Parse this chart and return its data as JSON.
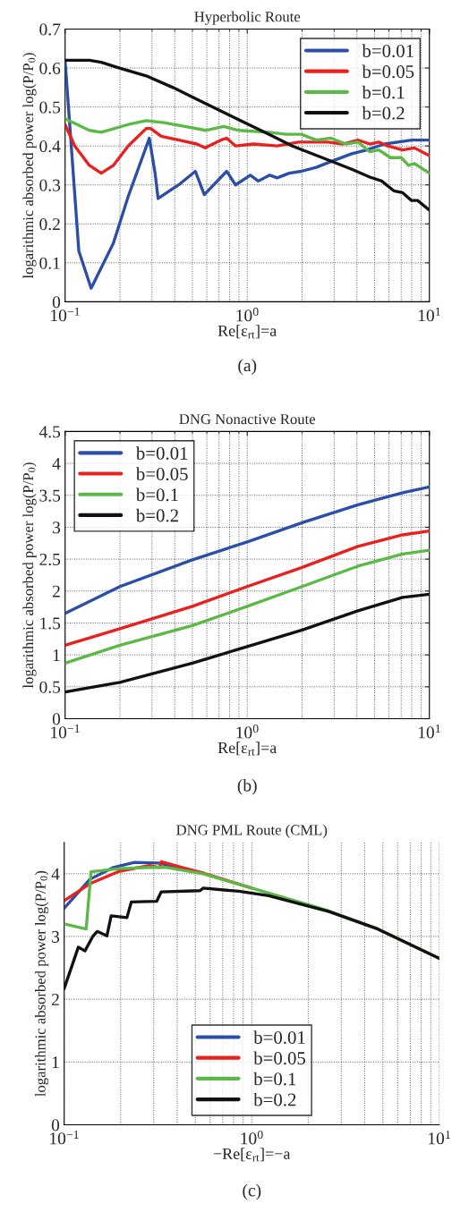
{
  "chart_data": [
    {
      "type": "line",
      "title": "Hyperbolic Route",
      "xlabel": "Re[ε$_{rt}$]=a",
      "ylabel": "logarithmic absorbed power log(P/P$_{0}$)",
      "annotations": [
        "(a)"
      ],
      "log": "x",
      "xlim": [
        0.1,
        10
      ],
      "xticks": [
        {
          "value": 0.1,
          "label": "10$^{−1}$"
        },
        {
          "value": 1,
          "label": "10$^{0}$"
        },
        {
          "value": 10,
          "label": "10$^{1}$"
        }
      ],
      "ylim": [
        0,
        0.7
      ],
      "yticks": [
        0,
        0.1,
        0.2,
        0.3,
        0.4,
        0.5,
        0.6,
        0.7
      ],
      "grid": true,
      "legend": "top right",
      "line_style": "solid",
      "marker": "none",
      "series": [
        {
          "name": "b=0.01",
          "color": "#2b4ea6",
          "x": [
            0.1,
            0.119,
            0.139,
            0.184,
            0.222,
            0.29,
            0.312,
            0.324,
            0.42,
            0.519,
            0.581,
            0.771,
            0.863,
            1.04,
            1.15,
            1.33,
            1.46,
            1.7,
            1.98,
            2.39,
            2.88,
            3.75,
            4.53,
            5.69,
            7.98,
            10
          ],
          "values": [
            0.62,
            0.13,
            0.035,
            0.15,
            0.27,
            0.42,
            0.33,
            0.265,
            0.3,
            0.335,
            0.275,
            0.335,
            0.3,
            0.325,
            0.31,
            0.325,
            0.318,
            0.33,
            0.335,
            0.345,
            0.36,
            0.38,
            0.39,
            0.405,
            0.415,
            0.415
          ]
        },
        {
          "name": "b=0.05",
          "color": "#e8201e",
          "x": [
            0.1,
            0.113,
            0.136,
            0.158,
            0.184,
            0.222,
            0.279,
            0.295,
            0.337,
            0.422,
            0.529,
            0.588,
            0.715,
            0.771,
            0.863,
            1.08,
            1.46,
            1.91,
            2.78,
            3.35,
            4.05,
            4.71,
            5.27,
            5.9,
            7.13,
            8.28,
            10
          ],
          "values": [
            0.455,
            0.4,
            0.35,
            0.33,
            0.35,
            0.4,
            0.445,
            0.445,
            0.425,
            0.415,
            0.405,
            0.395,
            0.415,
            0.42,
            0.4,
            0.405,
            0.4,
            0.41,
            0.41,
            0.405,
            0.415,
            0.405,
            0.41,
            0.4,
            0.39,
            0.395,
            0.375
          ]
        },
        {
          "name": "b=0.1",
          "color": "#5cb947",
          "x": [
            0.1,
            0.136,
            0.158,
            0.222,
            0.279,
            0.349,
            0.455,
            0.592,
            0.743,
            0.897,
            1.31,
            1.64,
            1.98,
            2.39,
            2.88,
            3.48,
            4.05,
            4.71,
            5.27,
            6.12,
            7.0,
            7.68,
            8.28,
            10
          ],
          "values": [
            0.47,
            0.44,
            0.435,
            0.455,
            0.465,
            0.46,
            0.45,
            0.44,
            0.45,
            0.44,
            0.435,
            0.43,
            0.43,
            0.415,
            0.42,
            0.405,
            0.41,
            0.385,
            0.39,
            0.37,
            0.37,
            0.35,
            0.355,
            0.33
          ]
        },
        {
          "name": "b=0.2",
          "color": "#111111",
          "x": [
            0.1,
            0.136,
            0.158,
            0.199,
            0.279,
            0.391,
            0.529,
            0.715,
            0.966,
            1.31,
            1.77,
            2.58,
            3.75,
            4.71,
            5.47,
            6.37,
            7.13,
            7.98,
            8.61,
            10
          ],
          "values": [
            0.62,
            0.62,
            0.615,
            0.6,
            0.58,
            0.55,
            0.52,
            0.49,
            0.46,
            0.43,
            0.4,
            0.37,
            0.34,
            0.32,
            0.31,
            0.285,
            0.28,
            0.26,
            0.26,
            0.235
          ]
        }
      ]
    },
    {
      "type": "line",
      "title": "DNG Nonactive Route",
      "xlabel": "Re[ε$_{rt}$]=a",
      "ylabel": "logarithmic absorbed power log(P/P$_{0}$)",
      "annotations": [
        "(b)"
      ],
      "log": "x",
      "xlim": [
        0.1,
        10
      ],
      "xticks": [
        {
          "value": 0.1,
          "label": "10$^{−1}$"
        },
        {
          "value": 1,
          "label": "10$^{0}$"
        },
        {
          "value": 10,
          "label": "10$^{1}$"
        }
      ],
      "ylim": [
        0,
        4.5
      ],
      "yticks": [
        0,
        0.5,
        1,
        1.5,
        2,
        2.5,
        3,
        3.5,
        4,
        4.5
      ],
      "grid": true,
      "legend": "top left",
      "line_style": "solid",
      "marker": "none",
      "series": [
        {
          "name": "b=0.01",
          "color": "#2b4ea6",
          "x": [
            0.1,
            0.2,
            0.5,
            1,
            2,
            4.05,
            7.13,
            10
          ],
          "values": [
            1.65,
            2.07,
            2.49,
            2.77,
            3.07,
            3.35,
            3.54,
            3.63
          ]
        },
        {
          "name": "b=0.05",
          "color": "#e8201e",
          "x": [
            0.1,
            0.2,
            0.5,
            1,
            2,
            4.05,
            7.13,
            10
          ],
          "values": [
            1.15,
            1.41,
            1.76,
            2.07,
            2.37,
            2.7,
            2.88,
            2.94
          ]
        },
        {
          "name": "b=0.1",
          "color": "#5cb947",
          "x": [
            0.1,
            0.2,
            0.5,
            1,
            2,
            4.05,
            7.13,
            10
          ],
          "values": [
            0.87,
            1.15,
            1.46,
            1.76,
            2.07,
            2.39,
            2.58,
            2.64
          ]
        },
        {
          "name": "b=0.2",
          "color": "#111111",
          "x": [
            0.1,
            0.2,
            0.5,
            1,
            2,
            4.05,
            7.13,
            10
          ],
          "values": [
            0.42,
            0.57,
            0.87,
            1.13,
            1.39,
            1.69,
            1.9,
            1.95
          ]
        }
      ]
    },
    {
      "type": "line",
      "title": "DNG PML Route (CML)",
      "xlabel": "−Re[ε$_{rt}$]=−a",
      "ylabel": "logarithmic absorbed power log(P/P$_{0}$)",
      "annotations": [
        "(c)"
      ],
      "log": "x",
      "xlim": [
        0.1,
        10
      ],
      "xticks": [
        {
          "value": 0.1,
          "label": "10$^{−1}$"
        },
        {
          "value": 1,
          "label": "10$^{0}$"
        },
        {
          "value": 10,
          "label": "10$^{1}$"
        }
      ],
      "ylim": [
        0,
        4.5
      ],
      "yticks": [
        0,
        1,
        2,
        3,
        4
      ],
      "grid": true,
      "legend": "bottom",
      "line_style": "solid",
      "marker": "none",
      "series": [
        {
          "name": "b=0.01",
          "color": "#2b4ea6",
          "x": [
            0.1,
            0.137,
            0.183,
            0.237,
            0.317,
            0.41,
            0.55
          ],
          "values": [
            3.45,
            3.91,
            4.1,
            4.18,
            4.17,
            4.1,
            4.01
          ]
        },
        {
          "name": "b=0.05",
          "color": "#e8201e",
          "x": [
            0.1,
            0.137,
            0.197,
            0.284,
            0.323,
            0.329,
            0.425,
            0.55,
            1.0
          ],
          "values": [
            3.57,
            3.84,
            4.04,
            4.13,
            4.1,
            4.19,
            4.1,
            4.01,
            3.77
          ]
        },
        {
          "name": "b=0.1",
          "color": "#5cb947",
          "x": [
            0.1,
            0.131,
            0.139,
            0.197,
            0.284,
            0.354,
            0.441,
            0.55,
            1.0,
            2.56,
            4.6,
            10
          ],
          "values": [
            3.2,
            3.12,
            4.03,
            4.08,
            4.1,
            4.1,
            4.05,
            4.0,
            3.77,
            3.41,
            3.13,
            2.65
          ]
        },
        {
          "name": "b=0.2",
          "color": "#111111",
          "x": [
            0.1,
            0.119,
            0.129,
            0.142,
            0.15,
            0.169,
            0.178,
            0.216,
            0.228,
            0.311,
            0.329,
            0.53,
            0.55,
            0.853,
            1.23,
            2.56,
            4.6,
            10
          ],
          "values": [
            2.17,
            2.83,
            2.77,
            3.0,
            3.08,
            3.01,
            3.33,
            3.3,
            3.55,
            3.56,
            3.71,
            3.73,
            3.77,
            3.72,
            3.65,
            3.4,
            3.13,
            2.65
          ]
        }
      ]
    }
  ]
}
